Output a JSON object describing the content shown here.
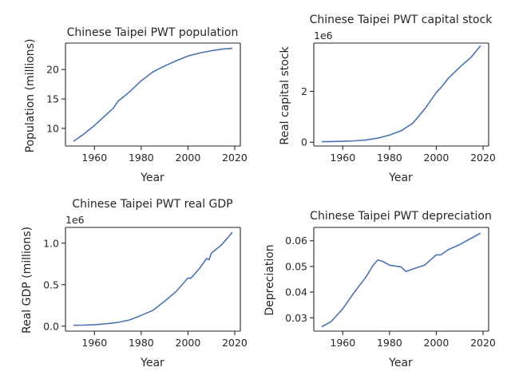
{
  "chart_data": [
    {
      "type": "line",
      "title": "Chinese Taipei PWT population",
      "xlabel": "Year",
      "ylabel": "Population (millions)",
      "offset_text": "",
      "xlim": [
        1947.6,
        2022.4
      ],
      "ylim": [
        7.0,
        24.5
      ],
      "xticks": [
        1960,
        1980,
        2000,
        2020
      ],
      "yticks": [
        10,
        15,
        20
      ],
      "ytick_labels": [
        "10",
        "15",
        "20"
      ],
      "x": [
        1951,
        1955,
        1960,
        1965,
        1968,
        1970,
        1975,
        1980,
        1985,
        1990,
        1995,
        2000,
        2005,
        2010,
        2015,
        2019
      ],
      "y": [
        7.8,
        8.9,
        10.5,
        12.3,
        13.4,
        14.6,
        16.2,
        18.1,
        19.6,
        20.6,
        21.5,
        22.3,
        22.8,
        23.2,
        23.5,
        23.6
      ]
    },
    {
      "type": "line",
      "title": "Chinese Taipei PWT capital stock",
      "xlabel": "Year",
      "ylabel": "Real capital stock",
      "offset_text": "1e6",
      "xlim": [
        1947.6,
        2022.4
      ],
      "ylim": [
        -0.15,
        3.9
      ],
      "xticks": [
        1960,
        1980,
        2000,
        2020
      ],
      "yticks": [
        0,
        2
      ],
      "ytick_labels": [
        "0",
        "2"
      ],
      "x": [
        1951,
        1955,
        1960,
        1965,
        1970,
        1975,
        1980,
        1985,
        1990,
        1995,
        2000,
        2002,
        2005,
        2010,
        2015,
        2019
      ],
      "y": [
        0.02,
        0.025,
        0.035,
        0.055,
        0.09,
        0.16,
        0.28,
        0.45,
        0.75,
        1.3,
        1.95,
        2.15,
        2.5,
        2.95,
        3.35,
        3.8
      ]
    },
    {
      "type": "line",
      "title": "Chinese Taipei PWT real GDP",
      "xlabel": "Year",
      "ylabel": "Real GDP (millions)",
      "offset_text": "1e6",
      "xlim": [
        1947.6,
        2022.4
      ],
      "ylim": [
        -0.06,
        1.19
      ],
      "xticks": [
        1960,
        1980,
        2000,
        2020
      ],
      "yticks": [
        0.0,
        0.5,
        1.0
      ],
      "ytick_labels": [
        "0.0",
        "0.5",
        "1.0"
      ],
      "x": [
        1951,
        1955,
        1960,
        1965,
        1970,
        1975,
        1980,
        1985,
        1990,
        1995,
        2000,
        2001,
        2002,
        2005,
        2008,
        2009,
        2010,
        2014,
        2015,
        2019
      ],
      "y": [
        0.01,
        0.012,
        0.018,
        0.028,
        0.045,
        0.075,
        0.13,
        0.19,
        0.3,
        0.42,
        0.58,
        0.575,
        0.6,
        0.7,
        0.815,
        0.8,
        0.88,
        0.97,
        1.0,
        1.13
      ]
    },
    {
      "type": "line",
      "title": "Chinese Taipei PWT depreciation",
      "xlabel": "Year",
      "ylabel": "Depreciation",
      "offset_text": "",
      "xlim": [
        1947.6,
        2022.4
      ],
      "ylim": [
        0.0248,
        0.0652
      ],
      "xticks": [
        1960,
        1980,
        2000,
        2020
      ],
      "yticks": [
        0.03,
        0.04,
        0.05,
        0.06
      ],
      "ytick_labels": [
        "0.03",
        "0.04",
        "0.05",
        "0.06"
      ],
      "x": [
        1951,
        1955,
        1960,
        1965,
        1970,
        1973,
        1975,
        1977,
        1980,
        1985,
        1987,
        1990,
        1995,
        2000,
        2002,
        2005,
        2010,
        2015,
        2019
      ],
      "y": [
        0.0265,
        0.0285,
        0.0335,
        0.04,
        0.046,
        0.0505,
        0.0525,
        0.052,
        0.0505,
        0.0498,
        0.048,
        0.049,
        0.0505,
        0.0545,
        0.0545,
        0.0565,
        0.0585,
        0.061,
        0.063
      ]
    }
  ]
}
